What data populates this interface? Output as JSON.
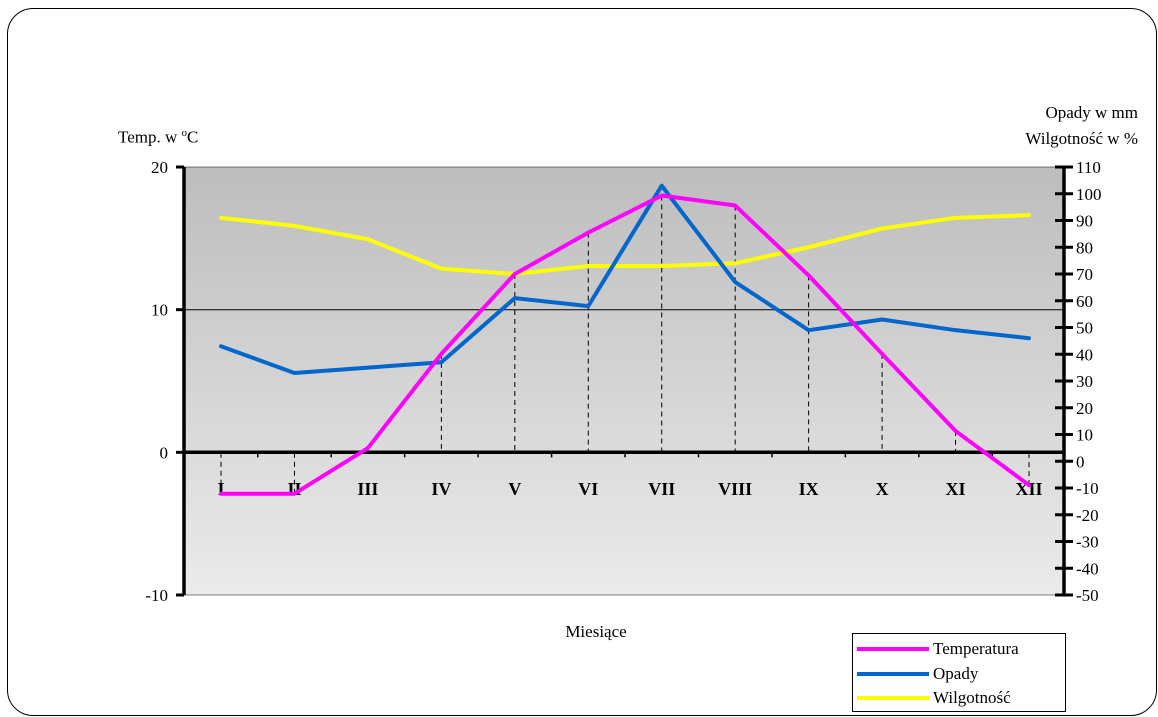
{
  "chart_data": {
    "type": "line",
    "x_axis_title": "Miesiące",
    "categories": [
      "I",
      "II",
      "III",
      "IV",
      "V",
      "VI",
      "VII",
      "VIII",
      "IX",
      "X",
      "XI",
      "XII"
    ],
    "left_axis": {
      "title_prefix": "Temp. w ",
      "title_sup": "o",
      "title_suffix": "C",
      "range": [
        -10,
        20
      ],
      "ticks": [
        "20",
        "10",
        "0",
        "-10"
      ]
    },
    "right_axis": {
      "title_line1": "Opady w mm",
      "title_line2": "Wilgotność w %",
      "range": [
        -50,
        110
      ],
      "ticks": [
        "110",
        "100",
        "90",
        "80",
        "70",
        "60",
        "50",
        "40",
        "30",
        "20",
        "10",
        "0",
        "-10",
        "-20",
        "-30",
        "-40",
        "-50"
      ]
    },
    "series": [
      {
        "name": "Temperatura",
        "axis": "left",
        "color": "#ff00ff",
        "values": [
          -2.9,
          -2.9,
          0.3,
          6.9,
          12.5,
          15.4,
          18.0,
          17.3,
          12.4,
          6.9,
          1.5,
          -2.3
        ]
      },
      {
        "name": "Opady",
        "axis": "right",
        "color": "#0066cc",
        "values": [
          43,
          33,
          35,
          37,
          61,
          58,
          103,
          67,
          49,
          53,
          49,
          46
        ]
      },
      {
        "name": "Wilgotność",
        "axis": "right",
        "color": "#ffff00",
        "values": [
          91,
          88,
          83,
          72,
          70,
          73,
          73,
          74,
          80,
          87,
          91,
          92
        ]
      }
    ],
    "legend_position": "bottom-right"
  }
}
